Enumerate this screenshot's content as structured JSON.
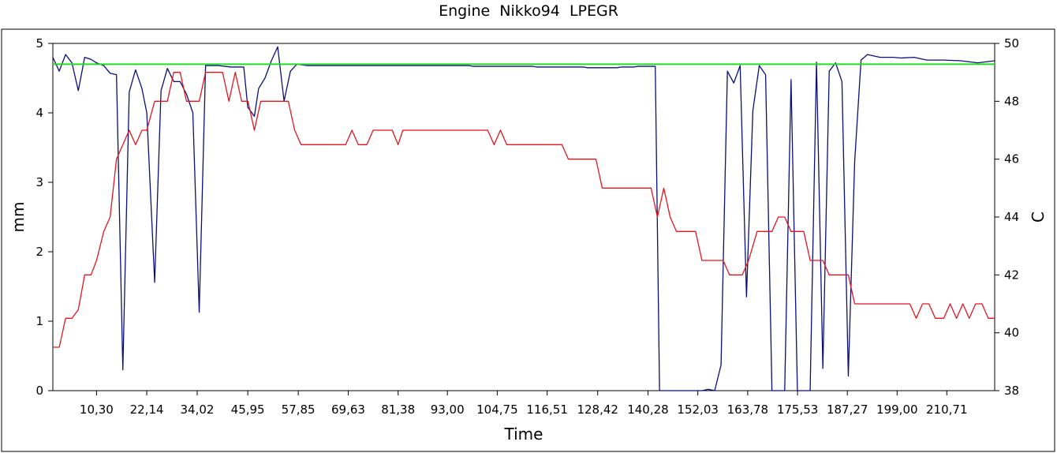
{
  "chart_data": {
    "type": "line",
    "title": "Engine  Nikko94  LPEGR",
    "xlabel": "Time",
    "ylabel_left": "mm",
    "ylabel_right": "C",
    "xlim": [
      0.0,
      222.0
    ],
    "ylim_left": [
      0,
      5
    ],
    "ylim_right": [
      38,
      50
    ],
    "x_ticks": [
      10.3,
      22.14,
      34.02,
      45.95,
      57.85,
      69.63,
      81.38,
      93.0,
      104.75,
      116.51,
      128.42,
      140.28,
      152.03,
      163.78,
      175.53,
      187.27,
      199.0,
      210.71
    ],
    "x_tick_labels": [
      "10,30",
      "22,14",
      "34,02",
      "45,95",
      "57,85",
      "69,63",
      "81,38",
      "93,00",
      "104,75",
      "116,51",
      "128,42",
      "140,28",
      "152,03",
      "163,78",
      "175,53",
      "187,27",
      "199,00",
      "210,71"
    ],
    "y_ticks_left": [
      "0",
      "1",
      "2",
      "3",
      "4",
      "5"
    ],
    "y_ticks_right": [
      "38",
      "40",
      "42",
      "44",
      "46",
      "48",
      "50"
    ],
    "grid": false,
    "legend": "none",
    "series": [
      {
        "axis": "left",
        "color": "#0a0f78",
        "points": [
          [
            0.0,
            4.8
          ],
          [
            1.5,
            4.6
          ],
          [
            3.0,
            4.84
          ],
          [
            4.5,
            4.72
          ],
          [
            6.0,
            4.32
          ],
          [
            7.5,
            4.8
          ],
          [
            9.0,
            4.77
          ],
          [
            10.3,
            4.72
          ],
          [
            12.0,
            4.68
          ],
          [
            13.5,
            4.57
          ],
          [
            15.0,
            4.55
          ],
          [
            16.5,
            0.3
          ],
          [
            18.0,
            4.3
          ],
          [
            19.5,
            4.62
          ],
          [
            21.0,
            4.35
          ],
          [
            22.14,
            4.0
          ],
          [
            24.0,
            1.56
          ],
          [
            25.5,
            4.32
          ],
          [
            27.0,
            4.64
          ],
          [
            28.5,
            4.45
          ],
          [
            30.0,
            4.45
          ],
          [
            31.5,
            4.27
          ],
          [
            33.0,
            4.0
          ],
          [
            34.5,
            1.13
          ],
          [
            36.0,
            4.68
          ],
          [
            39.0,
            4.68
          ],
          [
            42.0,
            4.66
          ],
          [
            43.5,
            4.66
          ],
          [
            45.0,
            4.66
          ],
          [
            45.95,
            4.08
          ],
          [
            47.5,
            3.95
          ],
          [
            48.5,
            4.35
          ],
          [
            50.0,
            4.5
          ],
          [
            51.5,
            4.75
          ],
          [
            53.0,
            4.95
          ],
          [
            54.5,
            4.17
          ],
          [
            56.0,
            4.6
          ],
          [
            57.5,
            4.7
          ],
          [
            60.0,
            4.68
          ],
          [
            70.0,
            4.68
          ],
          [
            80.0,
            4.68
          ],
          [
            90.0,
            4.68
          ],
          [
            98.0,
            4.68
          ],
          [
            99.0,
            4.67
          ],
          [
            110.0,
            4.67
          ],
          [
            113.0,
            4.67
          ],
          [
            114.0,
            4.66
          ],
          [
            125.0,
            4.66
          ],
          [
            126.0,
            4.65
          ],
          [
            133.0,
            4.65
          ],
          [
            134.0,
            4.66
          ],
          [
            137.0,
            4.66
          ],
          [
            138.0,
            4.67
          ],
          [
            142.0,
            4.67
          ],
          [
            143.0,
            0.0
          ],
          [
            146.0,
            0.0
          ],
          [
            150.0,
            0.0
          ],
          [
            153.0,
            0.0
          ],
          [
            154.5,
            0.02
          ],
          [
            156.0,
            0.0
          ],
          [
            157.5,
            0.37
          ],
          [
            159.0,
            4.6
          ],
          [
            160.5,
            4.43
          ],
          [
            162.0,
            4.68
          ],
          [
            163.5,
            1.35
          ],
          [
            165.0,
            4.03
          ],
          [
            166.5,
            4.68
          ],
          [
            168.0,
            4.55
          ],
          [
            169.5,
            0.0
          ],
          [
            171.0,
            0.0
          ],
          [
            172.5,
            0.0
          ],
          [
            174.0,
            4.48
          ],
          [
            175.5,
            0.0
          ],
          [
            177.0,
            0.0
          ],
          [
            178.5,
            0.0
          ],
          [
            180.0,
            4.73
          ],
          [
            181.5,
            0.32
          ],
          [
            183.0,
            4.6
          ],
          [
            184.5,
            4.72
          ],
          [
            186.0,
            4.45
          ],
          [
            187.5,
            0.21
          ],
          [
            189.0,
            3.3
          ],
          [
            190.5,
            4.76
          ],
          [
            192.0,
            4.84
          ],
          [
            195.0,
            4.8
          ],
          [
            198.0,
            4.8
          ],
          [
            200.0,
            4.79
          ],
          [
            203.0,
            4.8
          ],
          [
            206.0,
            4.76
          ],
          [
            210.0,
            4.76
          ],
          [
            214.0,
            4.75
          ],
          [
            218.0,
            4.72
          ],
          [
            222.0,
            4.75
          ]
        ]
      },
      {
        "axis": "right",
        "color": "#e6141e",
        "points": [
          [
            0.0,
            39.5
          ],
          [
            1.5,
            39.5
          ],
          [
            3.0,
            40.5
          ],
          [
            4.5,
            40.5
          ],
          [
            6.0,
            40.8
          ],
          [
            7.5,
            42.0
          ],
          [
            9.0,
            42.0
          ],
          [
            10.3,
            42.5
          ],
          [
            12.0,
            43.5
          ],
          [
            13.5,
            44.0
          ],
          [
            15.0,
            46.0
          ],
          [
            16.5,
            46.5
          ],
          [
            18.0,
            47.0
          ],
          [
            19.5,
            46.5
          ],
          [
            21.0,
            47.0
          ],
          [
            22.14,
            47.0
          ],
          [
            24.0,
            48.0
          ],
          [
            25.5,
            48.0
          ],
          [
            27.0,
            48.0
          ],
          [
            28.5,
            49.0
          ],
          [
            30.0,
            49.0
          ],
          [
            31.5,
            48.0
          ],
          [
            33.0,
            48.0
          ],
          [
            34.5,
            48.0
          ],
          [
            36.0,
            49.0
          ],
          [
            40.0,
            49.0
          ],
          [
            41.5,
            48.0
          ],
          [
            43.0,
            49.0
          ],
          [
            44.5,
            48.0
          ],
          [
            46.0,
            48.0
          ],
          [
            47.5,
            47.0
          ],
          [
            49.0,
            48.0
          ],
          [
            50.5,
            48.0
          ],
          [
            52.0,
            48.0
          ],
          [
            55.5,
            48.0
          ],
          [
            57.0,
            47.0
          ],
          [
            58.5,
            46.5
          ],
          [
            61.0,
            46.5
          ],
          [
            65.0,
            46.5
          ],
          [
            69.0,
            46.5
          ],
          [
            70.5,
            47.0
          ],
          [
            72.0,
            46.5
          ],
          [
            74.0,
            46.5
          ],
          [
            75.5,
            47.0
          ],
          [
            78.0,
            47.0
          ],
          [
            80.0,
            47.0
          ],
          [
            81.38,
            46.5
          ],
          [
            82.5,
            47.0
          ],
          [
            85.0,
            47.0
          ],
          [
            90.0,
            47.0
          ],
          [
            95.0,
            47.0
          ],
          [
            100.0,
            47.0
          ],
          [
            102.5,
            47.0
          ],
          [
            104.0,
            46.5
          ],
          [
            105.5,
            47.0
          ],
          [
            107.0,
            46.5
          ],
          [
            110.0,
            46.5
          ],
          [
            115.0,
            46.5
          ],
          [
            120.0,
            46.5
          ],
          [
            121.5,
            46.0
          ],
          [
            125.0,
            46.0
          ],
          [
            128.0,
            46.0
          ],
          [
            129.5,
            45.0
          ],
          [
            133.0,
            45.0
          ],
          [
            137.0,
            45.0
          ],
          [
            141.0,
            45.0
          ],
          [
            142.5,
            44.0
          ],
          [
            144.0,
            45.0
          ],
          [
            145.5,
            44.0
          ],
          [
            147.0,
            43.5
          ],
          [
            150.0,
            43.5
          ],
          [
            151.5,
            43.5
          ],
          [
            153.0,
            42.5
          ],
          [
            156.0,
            42.5
          ],
          [
            158.0,
            42.5
          ],
          [
            159.5,
            42.0
          ],
          [
            162.5,
            42.0
          ],
          [
            164.0,
            42.5
          ],
          [
            166.0,
            43.5
          ],
          [
            168.0,
            43.5
          ],
          [
            169.5,
            43.5
          ],
          [
            171.0,
            44.0
          ],
          [
            172.5,
            44.0
          ],
          [
            174.0,
            43.5
          ],
          [
            177.0,
            43.5
          ],
          [
            178.5,
            42.5
          ],
          [
            181.5,
            42.5
          ],
          [
            183.0,
            42.0
          ],
          [
            186.0,
            42.0
          ],
          [
            187.5,
            42.0
          ],
          [
            189.0,
            41.0
          ],
          [
            195.0,
            41.0
          ],
          [
            200.0,
            41.0
          ],
          [
            202.0,
            41.0
          ],
          [
            203.5,
            40.5
          ],
          [
            205.0,
            41.0
          ],
          [
            206.5,
            41.0
          ],
          [
            208.0,
            40.5
          ],
          [
            210.0,
            40.5
          ],
          [
            211.5,
            41.0
          ],
          [
            213.0,
            40.5
          ],
          [
            214.5,
            41.0
          ],
          [
            216.0,
            40.5
          ],
          [
            217.5,
            41.0
          ],
          [
            219.0,
            41.0
          ],
          [
            220.5,
            40.5
          ],
          [
            222.0,
            40.5
          ]
        ]
      },
      {
        "axis": "left",
        "color": "#22dd22",
        "points": [
          [
            0.0,
            4.7
          ],
          [
            222.0,
            4.7
          ]
        ]
      }
    ]
  }
}
